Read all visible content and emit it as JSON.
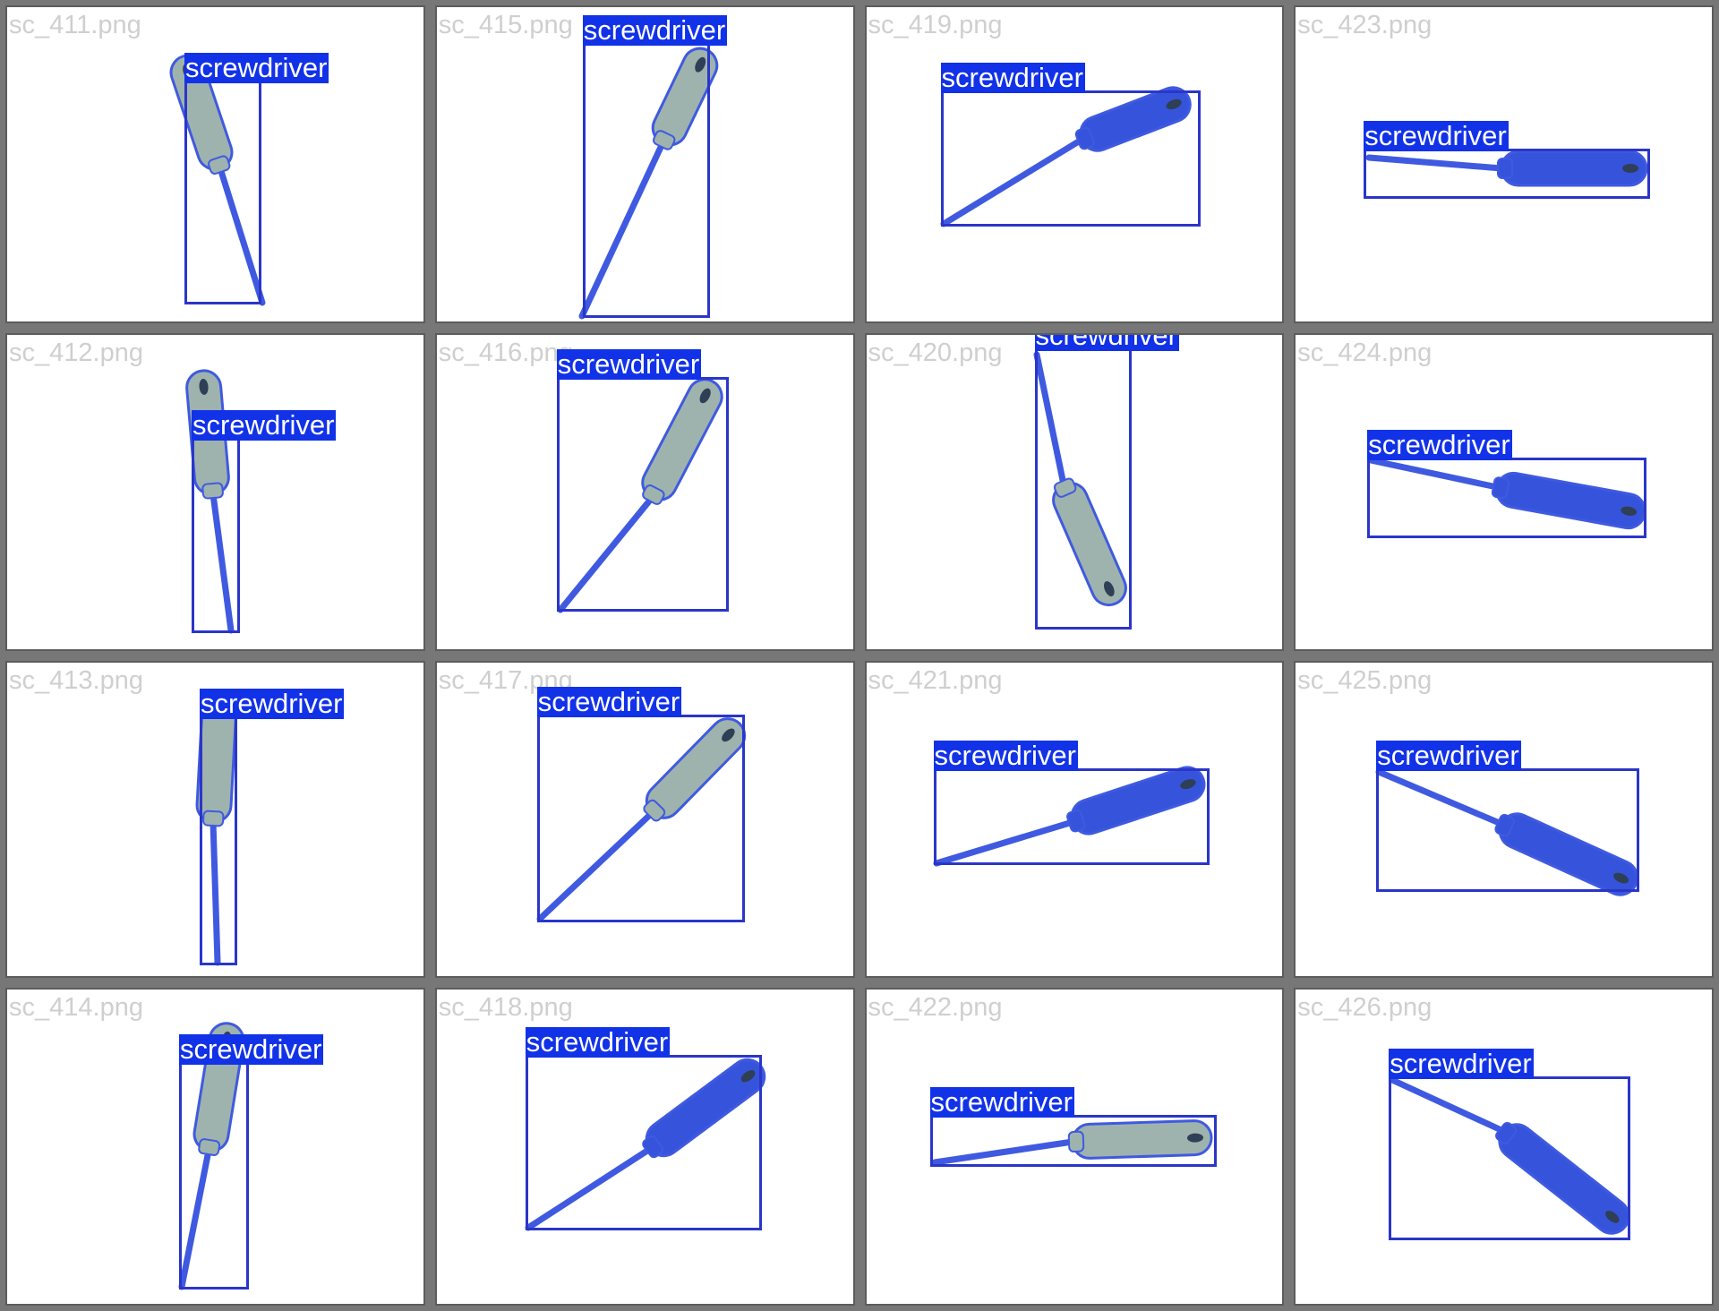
{
  "colors": {
    "background": "#777777",
    "tile": "#ffffff",
    "box": "#2a36c9",
    "label_bg": "#1232e8",
    "label_text": "#ffffff",
    "filename_text": "#cfcfcf",
    "shaft": "#3f5ae0",
    "handle_grey": "#9fb3ae",
    "handle_blue": "#3654db"
  },
  "tiles": [
    {
      "file": "sc_411.png",
      "label": "screwdriver",
      "handle": "grey"
    },
    {
      "file": "sc_415.png",
      "label": "screwdriver",
      "handle": "grey"
    },
    {
      "file": "sc_419.png",
      "label": "screwdriver",
      "handle": "blue"
    },
    {
      "file": "sc_423.png",
      "label": "screwdriver",
      "handle": "blue"
    },
    {
      "file": "sc_412.png",
      "label": "screwdriver",
      "handle": "grey"
    },
    {
      "file": "sc_416.png",
      "label": "screwdriver",
      "handle": "grey"
    },
    {
      "file": "sc_420.png",
      "label": "screwdriver",
      "handle": "grey"
    },
    {
      "file": "sc_424.png",
      "label": "screwdriver",
      "handle": "blue"
    },
    {
      "file": "sc_413.png",
      "label": "screwdriver",
      "handle": "grey"
    },
    {
      "file": "sc_417.png",
      "label": "screwdriver",
      "handle": "grey"
    },
    {
      "file": "sc_421.png",
      "label": "screwdriver",
      "handle": "blue"
    },
    {
      "file": "sc_425.png",
      "label": "screwdriver",
      "handle": "blue"
    },
    {
      "file": "sc_414.png",
      "label": "screwdriver",
      "handle": "grey"
    },
    {
      "file": "sc_418.png",
      "label": "screwdriver",
      "handle": "blue"
    },
    {
      "file": "sc_422.png",
      "label": "screwdriver",
      "handle": "grey"
    },
    {
      "file": "sc_426.png",
      "label": "screwdriver",
      "handle": "blue"
    }
  ]
}
